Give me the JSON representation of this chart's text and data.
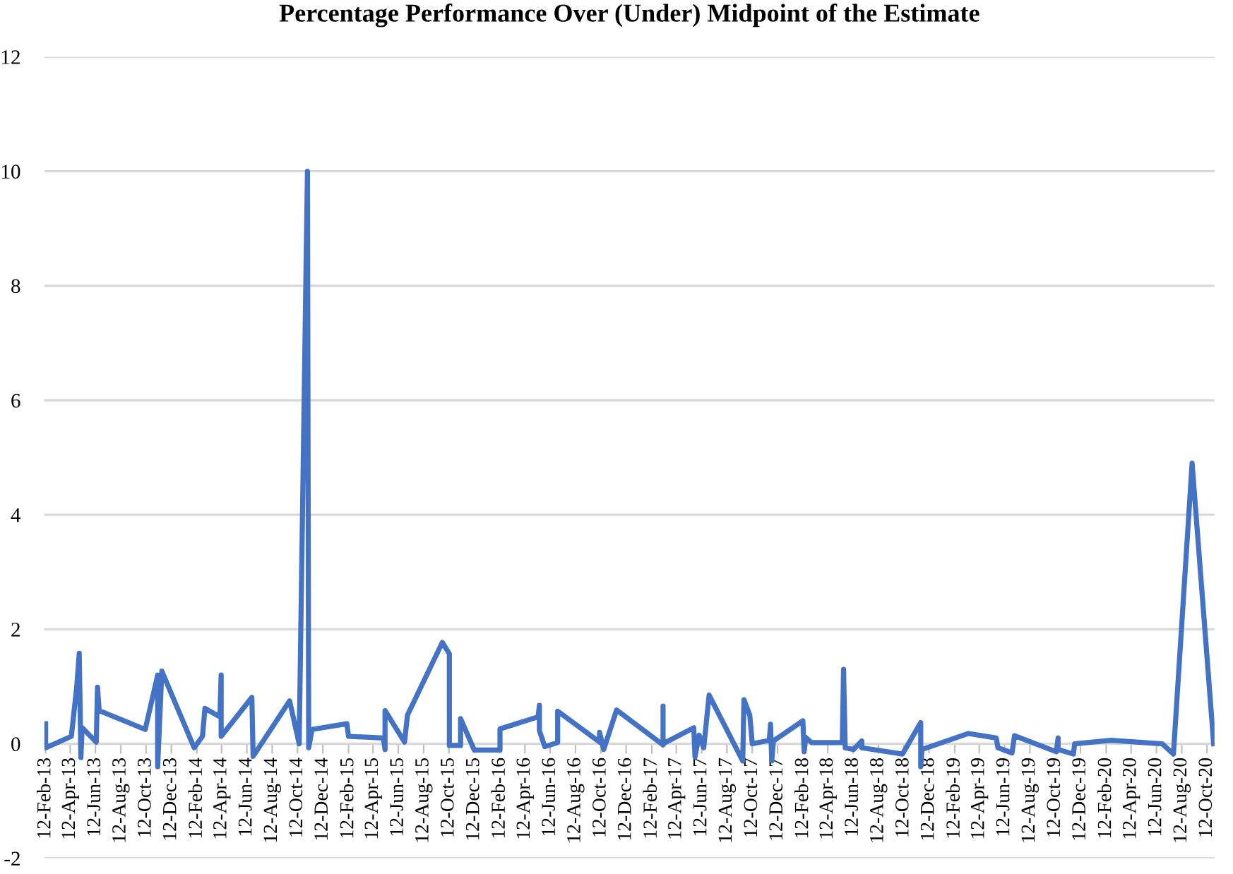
{
  "chart_data": {
    "type": "line",
    "title": "Percentage Performance Over (Under) Midpoint of the Estimate",
    "x": [
      "2013-02-12",
      "2013-02-12",
      "2013-04-15",
      "2013-04-28",
      "2013-05-04",
      "2013-05-08",
      "2013-05-11",
      "2013-06-14",
      "2013-06-17",
      "2013-06-21",
      "2013-10-10",
      "2013-11-09",
      "2013-11-09",
      "2013-11-19",
      "2014-02-05",
      "2014-02-25",
      "2014-03-03",
      "2014-04-08",
      "2014-04-11",
      "2014-04-11",
      "2014-06-24",
      "2014-06-27",
      "2014-09-23",
      "2014-10-16",
      "2014-11-05",
      "2014-11-08",
      "2014-11-16",
      "2015-02-08",
      "2015-02-12",
      "2015-05-07",
      "2015-05-11",
      "2015-05-11",
      "2015-06-27",
      "2015-07-04",
      "2015-09-26",
      "2015-10-13",
      "2015-10-13",
      "2015-11-09",
      "2015-11-09",
      "2015-12-12",
      "2016-02-12",
      "2016-02-12",
      "2016-05-14",
      "2016-05-17",
      "2016-05-17",
      "2016-05-30",
      "2016-06-30",
      "2016-06-30",
      "2016-10-09",
      "2016-10-09",
      "2016-10-19",
      "2016-11-19",
      "2017-03-11",
      "2017-03-11",
      "2017-03-11",
      "2017-05-24",
      "2017-05-27",
      "2017-06-06",
      "2017-06-17",
      "2017-06-30",
      "2017-09-19",
      "2017-09-22",
      "2017-10-06",
      "2017-10-12",
      "2017-11-22",
      "2017-11-25",
      "2017-11-28",
      "2017-12-02",
      "2018-02-11",
      "2018-02-14",
      "2018-02-18",
      "2018-03-04",
      "2018-05-17",
      "2018-05-20",
      "2018-05-24",
      "2018-06-13",
      "2018-07-03",
      "2018-07-03",
      "2018-10-09",
      "2018-11-22",
      "2018-11-22",
      "2018-11-25",
      "2019-03-17",
      "2019-05-23",
      "2019-05-27",
      "2019-06-30",
      "2019-07-06",
      "2019-10-15",
      "2019-10-19",
      "2019-10-19",
      "2019-11-25",
      "2019-11-28",
      "2020-02-24",
      "2020-06-26",
      "2020-07-23",
      "2020-09-06",
      "2020-10-28"
    ],
    "series": [
      {
        "color": "#4472c4",
        "values": [
          0.35,
          -0.07,
          0.13,
          1.0,
          1.58,
          -0.24,
          0.28,
          0.03,
          0.99,
          0.58,
          0.25,
          1.2,
          -0.4,
          1.27,
          -0.07,
          0.13,
          0.62,
          0.47,
          1.2,
          0.13,
          0.81,
          -0.22,
          0.75,
          0.0,
          10.0,
          -0.07,
          0.25,
          0.35,
          0.13,
          0.1,
          -0.1,
          0.58,
          0.03,
          0.5,
          1.77,
          1.57,
          -0.03,
          -0.03,
          0.44,
          -0.11,
          -0.11,
          0.26,
          0.47,
          0.67,
          0.23,
          -0.05,
          0.02,
          0.57,
          0.03,
          0.2,
          -0.1,
          0.59,
          -0.02,
          0.66,
          0.0,
          0.28,
          -0.23,
          0.15,
          -0.07,
          0.85,
          -0.3,
          0.77,
          0.5,
          0.0,
          0.06,
          0.34,
          -0.3,
          0.05,
          0.4,
          -0.14,
          0.11,
          0.02,
          0.02,
          1.3,
          -0.07,
          -0.1,
          0.05,
          -0.07,
          -0.18,
          0.37,
          -0.4,
          -0.1,
          0.18,
          0.1,
          -0.07,
          -0.16,
          0.14,
          -0.14,
          0.1,
          -0.1,
          -0.18,
          0.0,
          0.06,
          0.0,
          -0.18,
          4.9,
          0.0
        ]
      }
    ],
    "xlim": [
      "2013-02-09",
      "2020-10-30"
    ],
    "xticks": [
      {
        "value": "2013-02-12",
        "label": "12-Feb-13"
      },
      {
        "value": "2013-04-12",
        "label": "12-Apr-13"
      },
      {
        "value": "2013-06-12",
        "label": "12-Jun-13"
      },
      {
        "value": "2013-08-12",
        "label": "12-Aug-13"
      },
      {
        "value": "2013-10-12",
        "label": "12-Oct-13"
      },
      {
        "value": "2013-12-12",
        "label": "12-Dec-13"
      },
      {
        "value": "2014-02-12",
        "label": "12-Feb-14"
      },
      {
        "value": "2014-04-12",
        "label": "12-Apr-14"
      },
      {
        "value": "2014-06-12",
        "label": "12-Jun-14"
      },
      {
        "value": "2014-08-12",
        "label": "12-Aug-14"
      },
      {
        "value": "2014-10-12",
        "label": "12-Oct-14"
      },
      {
        "value": "2014-12-12",
        "label": "12-Dec-14"
      },
      {
        "value": "2015-02-12",
        "label": "12-Feb-15"
      },
      {
        "value": "2015-04-12",
        "label": "12-Apr-15"
      },
      {
        "value": "2015-06-12",
        "label": "12-Jun-15"
      },
      {
        "value": "2015-08-12",
        "label": "12-Aug-15"
      },
      {
        "value": "2015-10-12",
        "label": "12-Oct-15"
      },
      {
        "value": "2015-12-12",
        "label": "12-Dec-15"
      },
      {
        "value": "2016-02-12",
        "label": "12-Feb-16"
      },
      {
        "value": "2016-04-12",
        "label": "12-Apr-16"
      },
      {
        "value": "2016-06-12",
        "label": "12-Jun-16"
      },
      {
        "value": "2016-08-12",
        "label": "12-Aug-16"
      },
      {
        "value": "2016-10-12",
        "label": "12-Oct-16"
      },
      {
        "value": "2016-12-12",
        "label": "12-Dec-16"
      },
      {
        "value": "2017-02-12",
        "label": "12-Feb-17"
      },
      {
        "value": "2017-04-12",
        "label": "12-Apr-17"
      },
      {
        "value": "2017-06-12",
        "label": "12-Jun-17"
      },
      {
        "value": "2017-08-12",
        "label": "12-Aug-17"
      },
      {
        "value": "2017-10-12",
        "label": "12-Oct-17"
      },
      {
        "value": "2017-12-12",
        "label": "12-Dec-17"
      },
      {
        "value": "2018-02-12",
        "label": "12-Feb-18"
      },
      {
        "value": "2018-04-12",
        "label": "12-Apr-18"
      },
      {
        "value": "2018-06-12",
        "label": "12-Jun-18"
      },
      {
        "value": "2018-08-12",
        "label": "12-Aug-18"
      },
      {
        "value": "2018-10-12",
        "label": "12-Oct-18"
      },
      {
        "value": "2018-12-12",
        "label": "12-Dec-18"
      },
      {
        "value": "2019-02-12",
        "label": "12-Feb-19"
      },
      {
        "value": "2019-04-12",
        "label": "12-Apr-19"
      },
      {
        "value": "2019-06-12",
        "label": "12-Jun-19"
      },
      {
        "value": "2019-08-12",
        "label": "12-Aug-19"
      },
      {
        "value": "2019-10-12",
        "label": "12-Oct-19"
      },
      {
        "value": "2019-12-12",
        "label": "12-Dec-19"
      },
      {
        "value": "2020-02-12",
        "label": "12-Feb-20"
      },
      {
        "value": "2020-04-12",
        "label": "12-Apr-20"
      },
      {
        "value": "2020-06-12",
        "label": "12-Jun-20"
      },
      {
        "value": "2020-08-12",
        "label": "12-Aug-20"
      },
      {
        "value": "2020-10-12",
        "label": "12-Oct-20"
      }
    ],
    "ylim": [
      -2,
      12
    ],
    "yticks": [
      -2,
      0,
      2,
      4,
      6,
      8,
      10,
      12
    ],
    "grid": "y",
    "marker": "none",
    "line_style": "solid"
  }
}
